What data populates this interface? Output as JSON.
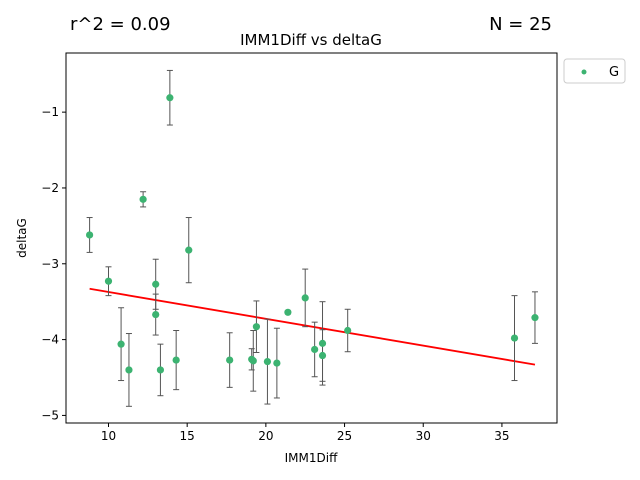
{
  "chart_data": {
    "type": "scatter",
    "title": "IMM1Diff vs deltaG",
    "xlabel": "IMM1Diff",
    "ylabel": "deltaG",
    "annotations": {
      "r2_text": "r^2 = 0.09",
      "n_text": "N = 25"
    },
    "xlim": [
      7.3,
      38.5
    ],
    "ylim": [
      -5.1,
      -0.22
    ],
    "xticks": [
      10,
      15,
      20,
      25,
      30,
      35
    ],
    "yticks": [
      -5,
      -4,
      -3,
      -2,
      -1
    ],
    "ytick_labels": [
      "−5",
      "−4",
      "−3",
      "−2",
      "−1"
    ],
    "grid": false,
    "legend": {
      "position": "outside-top-right",
      "entries": [
        "G"
      ]
    },
    "series": [
      {
        "name": "G",
        "color": "#3cb371",
        "error_color": "#555555",
        "points": [
          {
            "x": 8.8,
            "y": -2.62,
            "err": 0.23
          },
          {
            "x": 10.0,
            "y": -3.23,
            "err": 0.19
          },
          {
            "x": 10.8,
            "y": -4.06,
            "err": 0.48
          },
          {
            "x": 11.3,
            "y": -4.4,
            "err": 0.48
          },
          {
            "x": 12.2,
            "y": -2.15,
            "err": 0.1
          },
          {
            "x": 13.0,
            "y": -3.27,
            "err": 0.33
          },
          {
            "x": 13.0,
            "y": -3.67,
            "err": 0.27
          },
          {
            "x": 13.3,
            "y": -4.4,
            "err": 0.34
          },
          {
            "x": 13.9,
            "y": -0.81,
            "err": 0.36
          },
          {
            "x": 14.3,
            "y": -4.27,
            "err": 0.39
          },
          {
            "x": 15.1,
            "y": -2.82,
            "err": 0.43
          },
          {
            "x": 17.7,
            "y": -4.27,
            "err": 0.36
          },
          {
            "x": 19.1,
            "y": -4.26,
            "err": 0.14
          },
          {
            "x": 19.2,
            "y": -4.28,
            "err": 0.4
          },
          {
            "x": 19.4,
            "y": -3.83,
            "err": 0.34
          },
          {
            "x": 20.1,
            "y": -4.29,
            "err": 0.56
          },
          {
            "x": 20.7,
            "y": -4.31,
            "err": 0.46
          },
          {
            "x": 21.4,
            "y": -3.64,
            "err": 0.02
          },
          {
            "x": 22.5,
            "y": -3.45,
            "err": 0.38
          },
          {
            "x": 23.1,
            "y": -4.13,
            "err": 0.36
          },
          {
            "x": 23.6,
            "y": -4.05,
            "err": 0.55
          },
          {
            "x": 23.6,
            "y": -4.21,
            "err": 0.34
          },
          {
            "x": 25.2,
            "y": -3.88,
            "err": 0.28
          },
          {
            "x": 35.8,
            "y": -3.98,
            "err": 0.56
          },
          {
            "x": 37.1,
            "y": -3.71,
            "err": 0.34
          }
        ]
      }
    ],
    "regression": {
      "color": "#ff0000",
      "x": [
        8.8,
        37.1
      ],
      "y": [
        -3.33,
        -4.33
      ]
    }
  }
}
